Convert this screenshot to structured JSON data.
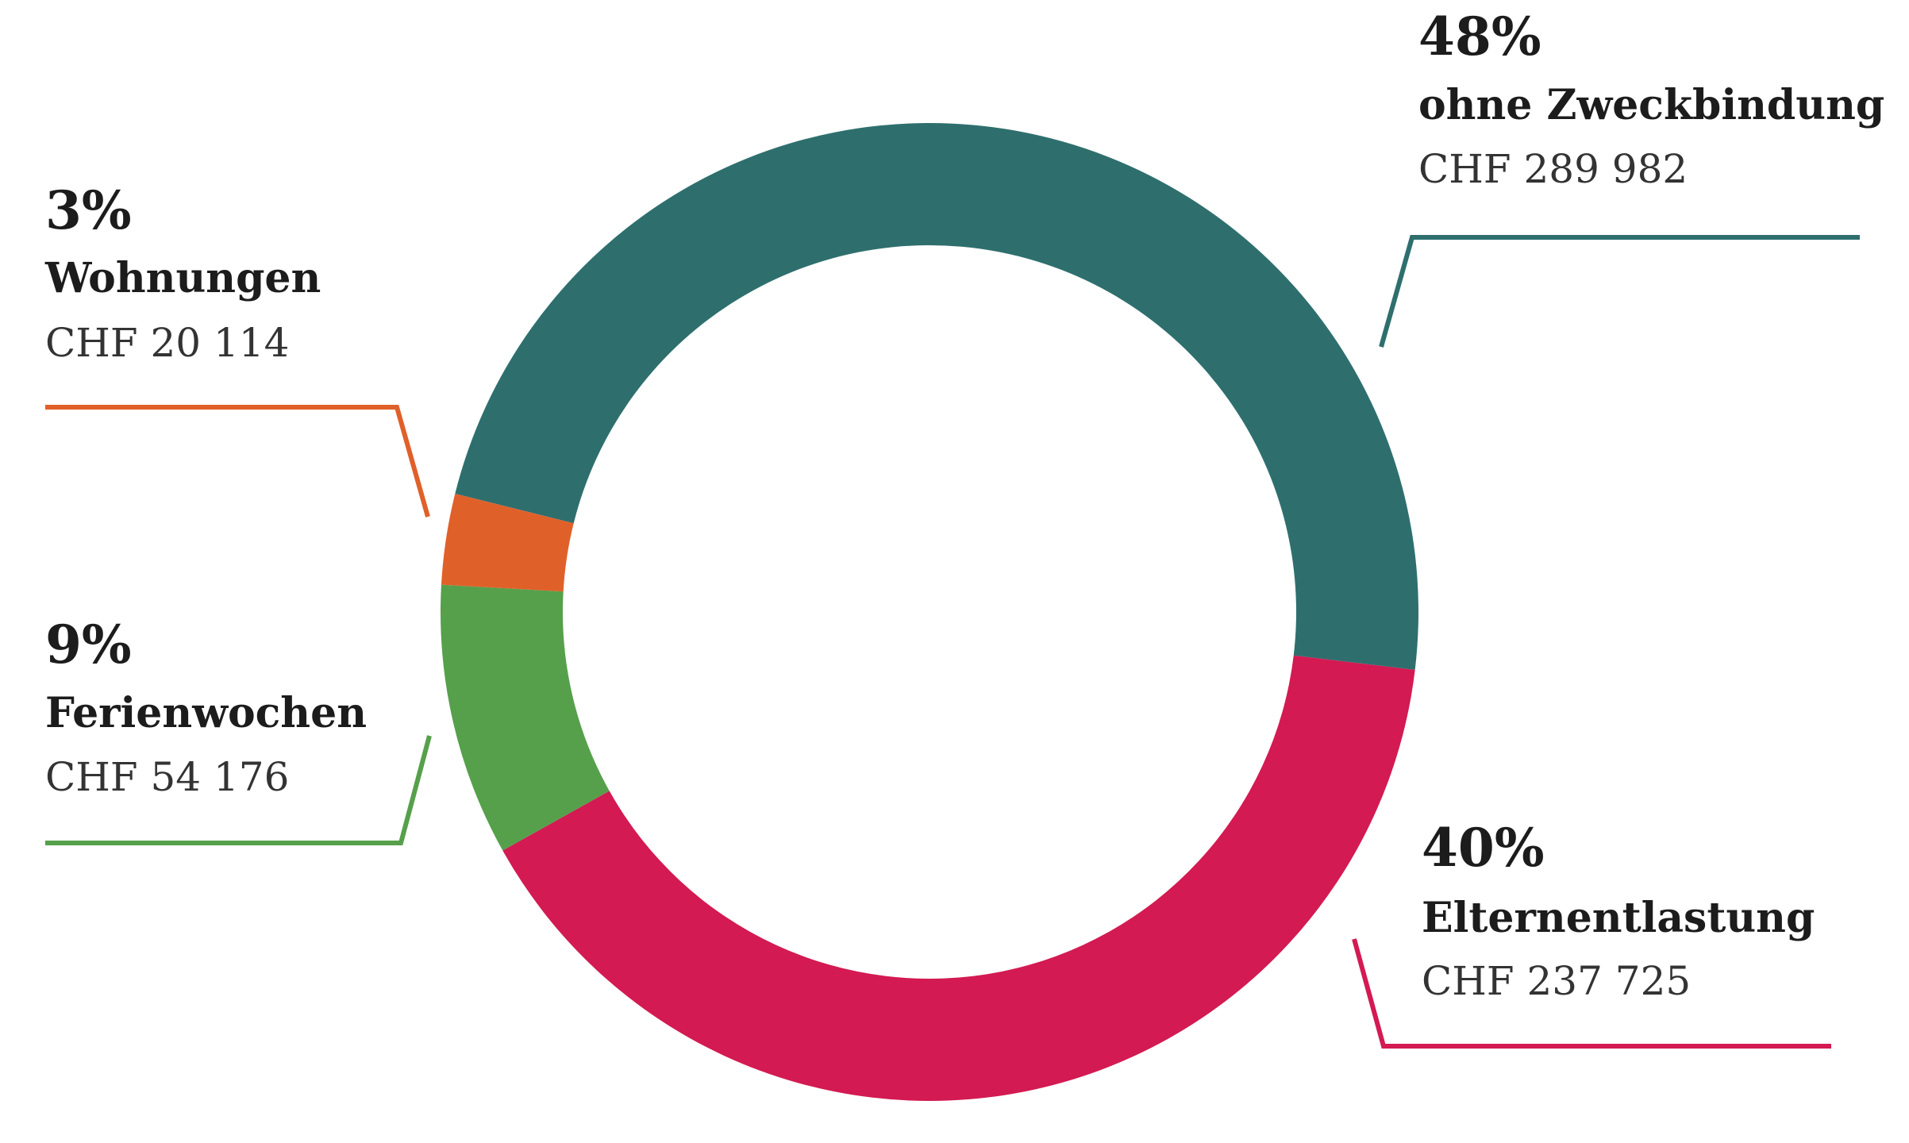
{
  "chart_data": {
    "type": "donut",
    "categories": [
      "ohne Zweckbindung",
      "Elternentlastung",
      "Ferienwochen",
      "Wohnungen"
    ],
    "values": [
      48,
      40,
      9,
      3
    ],
    "value_labels": [
      "48%",
      "40%",
      "9%",
      "3%"
    ],
    "amounts": [
      "CHF 289 982",
      "CHF 237 725",
      "CHF 54 176",
      "CHF 20 114"
    ],
    "colors": [
      "#2e6f6e",
      "#d31a52",
      "#56a04b",
      "#e0602a"
    ]
  }
}
